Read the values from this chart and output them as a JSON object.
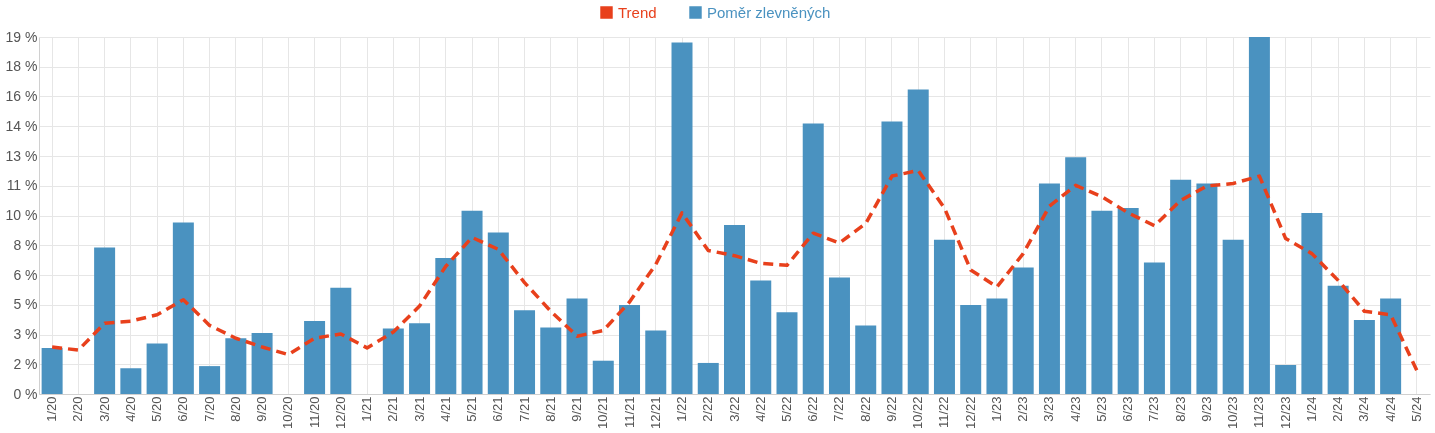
{
  "chart_data": {
    "type": "bar",
    "categories": [
      "1/20",
      "2/20",
      "3/20",
      "4/20",
      "5/20",
      "6/20",
      "7/20",
      "8/20",
      "9/20",
      "10/20",
      "11/20",
      "12/20",
      "1/21",
      "2/21",
      "3/21",
      "4/21",
      "5/21",
      "6/21",
      "7/21",
      "8/21",
      "9/21",
      "10/21",
      "11/21",
      "12/21",
      "1/22",
      "2/22",
      "3/22",
      "4/22",
      "5/22",
      "6/22",
      "7/22",
      "8/22",
      "9/22",
      "10/22",
      "11/22",
      "12/22",
      "1/23",
      "2/23",
      "3/23",
      "4/23",
      "5/23",
      "6/23",
      "7/23",
      "8/23",
      "9/23",
      "10/23",
      "11/23",
      "12/23",
      "1/24",
      "2/24",
      "3/24",
      "4/24",
      "5/24"
    ],
    "series": [
      {
        "name": "Trend",
        "type": "line",
        "line_style": "dashed",
        "color": "#e8401c",
        "values": [
          2.53,
          2.36,
          3.81,
          3.92,
          4.26,
          5.07,
          3.69,
          3.0,
          2.53,
          2.12,
          3.0,
          3.23,
          2.48,
          3.33,
          4.73,
          6.87,
          8.42,
          7.78,
          5.99,
          4.45,
          3.11,
          3.41,
          4.95,
          6.97,
          9.74,
          7.72,
          7.44,
          7.03,
          6.92,
          8.65,
          8.12,
          9.17,
          11.72,
          12.02,
          10.0,
          6.67,
          5.76,
          7.55,
          10.1,
          11.22,
          10.61,
          9.74,
          9.05,
          10.41,
          11.19,
          11.32,
          11.72,
          8.36,
          7.55,
          6.11,
          4.45,
          4.26,
          1.26
        ]
      },
      {
        "name": "Poměr zlevněných",
        "color": "#4a92c0",
        "values": [
          2.48,
          0,
          7.88,
          1.38,
          2.71,
          9.23,
          1.5,
          3.0,
          3.28,
          0,
          3.92,
          5.71,
          0,
          3.52,
          3.81,
          7.32,
          9.85,
          8.69,
          4.5,
          3.58,
          5.13,
          1.79,
          4.78,
          3.41,
          18.9,
          1.67,
          9.09,
          6.11,
          4.39,
          14.55,
          6.27,
          3.69,
          14.65,
          16.37,
          8.29,
          4.78,
          5.13,
          6.8,
          11.32,
          12.73,
          9.85,
          10.0,
          7.07,
          11.52,
          11.32,
          8.29,
          19.2,
          1.56,
          9.74,
          5.82,
          3.98,
          5.13,
          0
        ]
      }
    ],
    "ylim": [
      0,
      19.2
    ],
    "yticks": [
      {
        "value": 0,
        "label": "0 %"
      },
      {
        "value": 1.6,
        "label": "2 %"
      },
      {
        "value": 3.2,
        "label": "3 %"
      },
      {
        "value": 4.8,
        "label": "5 %"
      },
      {
        "value": 6.4,
        "label": "6 %"
      },
      {
        "value": 8,
        "label": "8 %"
      },
      {
        "value": 9.6,
        "label": "10 %"
      },
      {
        "value": 11.2,
        "label": "11 %"
      },
      {
        "value": 12.8,
        "label": "13 %"
      },
      {
        "value": 14.4,
        "label": "14 %"
      },
      {
        "value": 16,
        "label": "16 %"
      },
      {
        "value": 17.6,
        "label": "18 %"
      },
      {
        "value": 19.2,
        "label": "19 %"
      }
    ],
    "grid": true,
    "legend": "top"
  }
}
